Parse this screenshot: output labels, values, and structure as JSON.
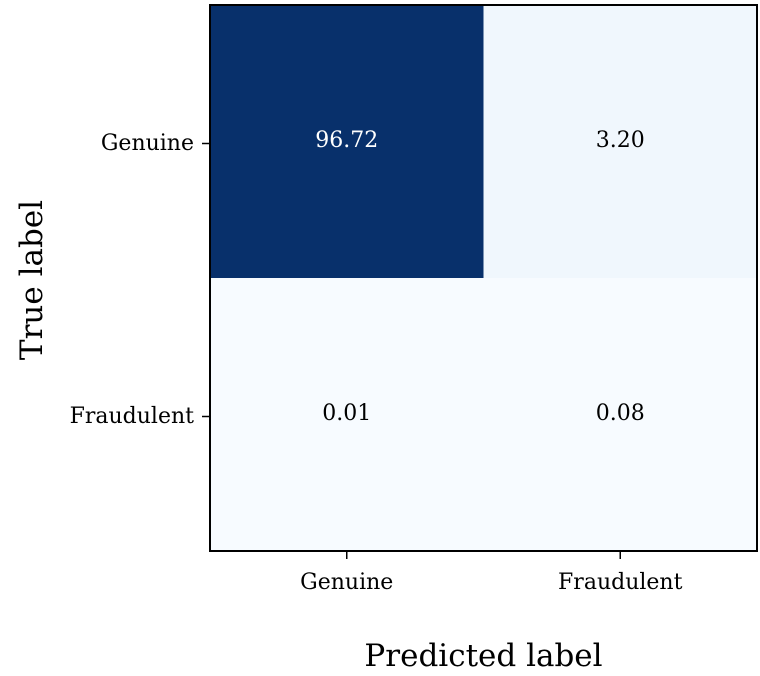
{
  "chart_data": {
    "type": "heatmap",
    "title": "",
    "xlabel": "Predicted label",
    "ylabel": "True label",
    "x_categories": [
      "Genuine",
      "Fraudulent"
    ],
    "y_categories": [
      "Genuine",
      "Fraudulent"
    ],
    "values": [
      [
        96.72,
        3.2
      ],
      [
        0.01,
        0.08
      ]
    ],
    "value_labels": [
      [
        "96.72",
        "3.20"
      ],
      [
        "0.01",
        "0.08"
      ]
    ],
    "colormap": "Blues",
    "colors": {
      "low": "#f7fbff",
      "high": "#08306b",
      "dark_text": "#000000",
      "light_text": "#ffffff"
    },
    "grid": false,
    "legend": "none"
  }
}
